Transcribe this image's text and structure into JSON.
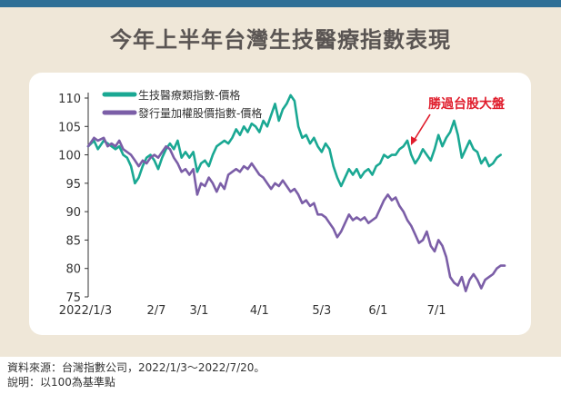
{
  "title": "今年上半年台灣生技醫療指數表現",
  "annotation": "勝過台股大盤",
  "footer": {
    "source": "資料來源：台灣指數公司，2022/1/3～2022/7/20。",
    "note": "說明：以100為基準點"
  },
  "chart_data": {
    "type": "line",
    "title": "今年上半年台灣生技醫療指數表現",
    "xlabel": "",
    "ylabel": "",
    "ylim": [
      75,
      110
    ],
    "yticks": [
      75,
      80,
      85,
      90,
      95,
      100,
      105,
      110
    ],
    "x_tick_labels": [
      "2022/1/3",
      "2/7",
      "3/1",
      "4/1",
      "5/3",
      "6/1",
      "7/1"
    ],
    "x_tick_days": [
      0,
      35,
      57,
      88,
      120,
      149,
      179
    ],
    "x_range_days": [
      0,
      198
    ],
    "legend": "top-left",
    "grid": false,
    "series": [
      {
        "name": "生技醫療類指數-價格",
        "color": "#1aa893",
        "points": [
          [
            0,
            101.5
          ],
          [
            3,
            102.5
          ],
          [
            5,
            101.0
          ],
          [
            8,
            102.5
          ],
          [
            10,
            102.0
          ],
          [
            12,
            101.5
          ],
          [
            14,
            101.0
          ],
          [
            16,
            101.5
          ],
          [
            18,
            100.0
          ],
          [
            20,
            99.5
          ],
          [
            22,
            98.0
          ],
          [
            24,
            95.0
          ],
          [
            26,
            96.0
          ],
          [
            28,
            98.0
          ],
          [
            30,
            99.5
          ],
          [
            32,
            100.0
          ],
          [
            34,
            99.0
          ],
          [
            36,
            97.5
          ],
          [
            38,
            99.5
          ],
          [
            40,
            101.0
          ],
          [
            42,
            102.0
          ],
          [
            44,
            101.0
          ],
          [
            46,
            102.5
          ],
          [
            48,
            99.5
          ],
          [
            50,
            100.5
          ],
          [
            52,
            99.5
          ],
          [
            54,
            100.5
          ],
          [
            56,
            97.0
          ],
          [
            58,
            98.5
          ],
          [
            60,
            99.0
          ],
          [
            62,
            98.0
          ],
          [
            64,
            100.0
          ],
          [
            66,
            101.5
          ],
          [
            68,
            102.0
          ],
          [
            70,
            102.5
          ],
          [
            72,
            102.0
          ],
          [
            74,
            103.0
          ],
          [
            76,
            104.5
          ],
          [
            78,
            103.5
          ],
          [
            80,
            105.0
          ],
          [
            82,
            104.0
          ],
          [
            84,
            105.5
          ],
          [
            86,
            105.0
          ],
          [
            88,
            104.0
          ],
          [
            90,
            106.0
          ],
          [
            92,
            105.0
          ],
          [
            94,
            107.0
          ],
          [
            96,
            109.0
          ],
          [
            98,
            106.0
          ],
          [
            100,
            108.0
          ],
          [
            102,
            109.0
          ],
          [
            104,
            110.5
          ],
          [
            106,
            109.5
          ],
          [
            108,
            105.0
          ],
          [
            110,
            103.0
          ],
          [
            112,
            103.5
          ],
          [
            114,
            102.0
          ],
          [
            116,
            103.0
          ],
          [
            118,
            101.5
          ],
          [
            120,
            100.5
          ],
          [
            122,
            102.0
          ],
          [
            124,
            101.0
          ],
          [
            126,
            98.0
          ],
          [
            128,
            96.0
          ],
          [
            130,
            94.5
          ],
          [
            132,
            96.0
          ],
          [
            134,
            97.5
          ],
          [
            136,
            96.5
          ],
          [
            138,
            97.5
          ],
          [
            140,
            96.0
          ],
          [
            142,
            97.0
          ],
          [
            144,
            97.5
          ],
          [
            146,
            96.5
          ],
          [
            148,
            98.0
          ],
          [
            150,
            98.5
          ],
          [
            152,
            100.0
          ],
          [
            154,
            99.5
          ],
          [
            156,
            100.0
          ],
          [
            158,
            100.0
          ],
          [
            160,
            101.0
          ],
          [
            162,
            101.5
          ],
          [
            164,
            102.5
          ],
          [
            166,
            100.0
          ],
          [
            168,
            98.5
          ],
          [
            170,
            99.5
          ],
          [
            172,
            101.0
          ],
          [
            174,
            100.0
          ],
          [
            176,
            99.0
          ],
          [
            178,
            101.0
          ],
          [
            180,
            103.5
          ],
          [
            182,
            101.5
          ],
          [
            184,
            103.0
          ],
          [
            186,
            104.0
          ],
          [
            188,
            106.0
          ],
          [
            190,
            103.5
          ],
          [
            192,
            99.5
          ],
          [
            194,
            101.0
          ],
          [
            196,
            102.5
          ],
          [
            198,
            101.0
          ],
          [
            200,
            100.5
          ],
          [
            202,
            98.5
          ],
          [
            204,
            99.5
          ],
          [
            206,
            98.0
          ],
          [
            208,
            98.5
          ],
          [
            210,
            99.5
          ],
          [
            212,
            100.0
          ]
        ]
      },
      {
        "name": "發行量加權股價指數-價格",
        "color": "#7b5ea7",
        "points": [
          [
            0,
            101.5
          ],
          [
            3,
            103.0
          ],
          [
            5,
            102.5
          ],
          [
            8,
            103.0
          ],
          [
            10,
            101.5
          ],
          [
            12,
            102.0
          ],
          [
            14,
            101.5
          ],
          [
            16,
            102.5
          ],
          [
            18,
            101.0
          ],
          [
            20,
            100.5
          ],
          [
            22,
            100.0
          ],
          [
            24,
            99.0
          ],
          [
            26,
            98.0
          ],
          [
            28,
            99.0
          ],
          [
            30,
            98.5
          ],
          [
            32,
            99.5
          ],
          [
            34,
            100.0
          ],
          [
            36,
            99.5
          ],
          [
            38,
            100.5
          ],
          [
            40,
            101.5
          ],
          [
            42,
            101.0
          ],
          [
            44,
            99.5
          ],
          [
            46,
            98.5
          ],
          [
            48,
            97.0
          ],
          [
            50,
            97.5
          ],
          [
            52,
            96.5
          ],
          [
            54,
            97.5
          ],
          [
            56,
            93.0
          ],
          [
            58,
            95.0
          ],
          [
            60,
            94.5
          ],
          [
            62,
            96.0
          ],
          [
            64,
            95.0
          ],
          [
            66,
            93.5
          ],
          [
            68,
            95.0
          ],
          [
            70,
            94.0
          ],
          [
            72,
            96.5
          ],
          [
            74,
            97.0
          ],
          [
            76,
            97.5
          ],
          [
            78,
            97.0
          ],
          [
            80,
            98.0
          ],
          [
            82,
            97.5
          ],
          [
            84,
            98.5
          ],
          [
            86,
            97.5
          ],
          [
            88,
            96.5
          ],
          [
            90,
            96.0
          ],
          [
            92,
            95.0
          ],
          [
            94,
            94.0
          ],
          [
            96,
            95.0
          ],
          [
            98,
            94.5
          ],
          [
            100,
            95.5
          ],
          [
            102,
            94.5
          ],
          [
            104,
            93.5
          ],
          [
            106,
            94.0
          ],
          [
            108,
            93.0
          ],
          [
            110,
            91.5
          ],
          [
            112,
            92.0
          ],
          [
            114,
            91.0
          ],
          [
            116,
            91.5
          ],
          [
            118,
            89.5
          ],
          [
            120,
            89.5
          ],
          [
            122,
            89.0
          ],
          [
            124,
            88.0
          ],
          [
            126,
            87.0
          ],
          [
            128,
            85.5
          ],
          [
            130,
            86.5
          ],
          [
            132,
            88.0
          ],
          [
            134,
            89.5
          ],
          [
            136,
            88.5
          ],
          [
            138,
            89.0
          ],
          [
            140,
            88.5
          ],
          [
            142,
            89.0
          ],
          [
            144,
            88.0
          ],
          [
            146,
            88.5
          ],
          [
            148,
            89.0
          ],
          [
            150,
            90.5
          ],
          [
            152,
            92.0
          ],
          [
            154,
            93.0
          ],
          [
            156,
            92.0
          ],
          [
            158,
            92.5
          ],
          [
            160,
            91.0
          ],
          [
            162,
            90.0
          ],
          [
            164,
            88.5
          ],
          [
            166,
            87.5
          ],
          [
            168,
            86.0
          ],
          [
            170,
            84.5
          ],
          [
            172,
            85.0
          ],
          [
            174,
            86.5
          ],
          [
            176,
            84.0
          ],
          [
            178,
            83.0
          ],
          [
            180,
            85.0
          ],
          [
            182,
            84.0
          ],
          [
            184,
            82.0
          ],
          [
            186,
            78.5
          ],
          [
            188,
            77.5
          ],
          [
            190,
            77.0
          ],
          [
            192,
            78.5
          ],
          [
            194,
            76.0
          ],
          [
            196,
            78.0
          ],
          [
            198,
            79.0
          ],
          [
            200,
            78.0
          ],
          [
            202,
            76.5
          ],
          [
            204,
            78.0
          ],
          [
            206,
            78.5
          ],
          [
            208,
            79.0
          ],
          [
            210,
            80.0
          ],
          [
            212,
            80.5
          ],
          [
            214,
            80.5
          ]
        ]
      }
    ]
  }
}
